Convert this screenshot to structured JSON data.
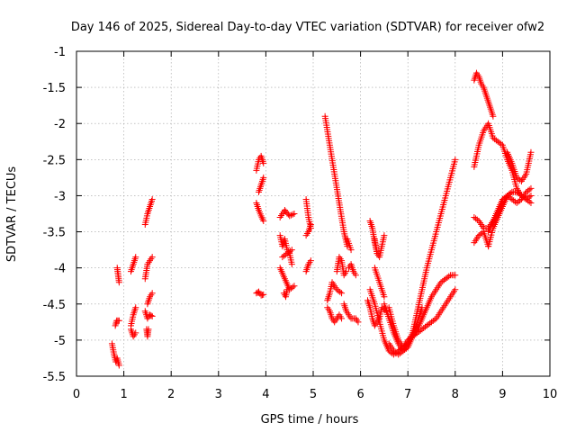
{
  "chart_data": {
    "type": "scatter",
    "title": "Day 146 of 2025, Sidereal Day-to-day VTEC variation (SDTVAR) for receiver ofw2",
    "xlabel": "GPS time / hours",
    "ylabel": "SDTVAR / TECUs",
    "xlim": [
      0,
      10
    ],
    "ylim": [
      -5.5,
      -1
    ],
    "x_ticks": [
      0,
      1,
      2,
      3,
      4,
      5,
      6,
      7,
      8,
      9,
      10
    ],
    "x_tick_labels": [
      "0",
      "1",
      "2",
      "3",
      "4",
      "5",
      "6",
      "7",
      "8",
      "9",
      "10"
    ],
    "y_ticks": [
      -1,
      -1.5,
      -2,
      -2.5,
      -3,
      -3.5,
      -4,
      -4.5,
      -5,
      -5.5
    ],
    "y_tick_labels": [
      "-1",
      "-1.5",
      "-2",
      "-2.5",
      "-3",
      "-3.5",
      "-4",
      "-4.5",
      "-5",
      "-5.5"
    ],
    "grid": true,
    "marker": "+",
    "marker_color": "#ff0000",
    "segments": [
      {
        "name": "t0.8",
        "x": [
          0.75,
          0.8,
          0.83,
          0.86,
          0.9
        ],
        "y": [
          -5.05,
          -5.22,
          -5.3,
          -5.25,
          -5.35
        ]
      },
      {
        "name": "t0.85",
        "x": [
          0.82,
          0.85,
          0.9
        ],
        "y": [
          -4.8,
          -4.73,
          -4.73
        ]
      },
      {
        "name": "t0.88",
        "x": [
          0.86,
          0.88,
          0.9
        ],
        "y": [
          -4.0,
          -4.1,
          -4.2
        ]
      },
      {
        "name": "t1.2a",
        "x": [
          1.15,
          1.2,
          1.25
        ],
        "y": [
          -4.8,
          -4.65,
          -4.55
        ]
      },
      {
        "name": "t1.2b",
        "x": [
          1.15,
          1.2,
          1.25
        ],
        "y": [
          -4.85,
          -4.95,
          -4.9
        ]
      },
      {
        "name": "t1.2c",
        "x": [
          1.15,
          1.2,
          1.25
        ],
        "y": [
          -4.05,
          -3.95,
          -3.85
        ]
      },
      {
        "name": "t1.5a",
        "x": [
          1.45,
          1.5,
          1.55,
          1.6
        ],
        "y": [
          -3.4,
          -3.25,
          -3.15,
          -3.05
        ]
      },
      {
        "name": "t1.5b",
        "x": [
          1.45,
          1.5,
          1.55,
          1.6
        ],
        "y": [
          -4.6,
          -4.7,
          -4.65,
          -4.67
        ]
      },
      {
        "name": "t1.5c",
        "x": [
          1.5,
          1.55,
          1.6
        ],
        "y": [
          -4.5,
          -4.4,
          -4.35
        ]
      },
      {
        "name": "t1.5d",
        "x": [
          1.45,
          1.5,
          1.55,
          1.6
        ],
        "y": [
          -4.15,
          -3.95,
          -3.9,
          -3.85
        ]
      },
      {
        "name": "t1.5e",
        "x": [
          1.48,
          1.5,
          1.52
        ],
        "y": [
          -4.85,
          -4.95,
          -4.85
        ]
      },
      {
        "name": "t3.9a",
        "x": [
          3.8,
          3.85,
          3.9,
          3.95
        ],
        "y": [
          -2.65,
          -2.5,
          -2.45,
          -2.55
        ]
      },
      {
        "name": "t3.9b",
        "x": [
          3.8,
          3.85,
          3.9,
          3.95
        ],
        "y": [
          -3.1,
          -3.2,
          -3.28,
          -3.35
        ]
      },
      {
        "name": "t3.9c",
        "x": [
          3.85,
          3.9,
          3.95
        ],
        "y": [
          -2.95,
          -2.85,
          -2.75
        ]
      },
      {
        "name": "t3.9d",
        "x": [
          3.8,
          3.85,
          3.9,
          3.95
        ],
        "y": [
          -4.35,
          -4.33,
          -4.38,
          -4.37
        ]
      },
      {
        "name": "t4.4a",
        "x": [
          4.3,
          4.4,
          4.5,
          4.6
        ],
        "y": [
          -3.3,
          -3.2,
          -3.28,
          -3.25
        ]
      },
      {
        "name": "t4.4b",
        "x": [
          4.3,
          4.35,
          4.4,
          4.45,
          4.5,
          4.55
        ],
        "y": [
          -3.55,
          -3.7,
          -3.6,
          -3.75,
          -3.8,
          -3.95
        ]
      },
      {
        "name": "t4.4c",
        "x": [
          4.35,
          4.45,
          4.55
        ],
        "y": [
          -3.85,
          -3.8,
          -3.75
        ]
      },
      {
        "name": "t4.4d",
        "x": [
          4.3,
          4.4,
          4.5,
          4.6
        ],
        "y": [
          -4.0,
          -4.15,
          -4.3,
          -4.25
        ]
      },
      {
        "name": "t4.4e",
        "x": [
          4.38,
          4.42,
          4.45
        ],
        "y": [
          -4.35,
          -4.4,
          -4.3
        ]
      },
      {
        "name": "t4.9a",
        "x": [
          4.85,
          4.9,
          4.95
        ],
        "y": [
          -3.05,
          -3.3,
          -3.45
        ]
      },
      {
        "name": "t4.9b",
        "x": [
          4.85,
          4.9,
          4.95
        ],
        "y": [
          -3.55,
          -3.5,
          -3.4
        ]
      },
      {
        "name": "t4.9c",
        "x": [
          4.85,
          4.9,
          4.95
        ],
        "y": [
          -4.05,
          -3.95,
          -3.9
        ]
      },
      {
        "name": "t5.3a",
        "x": [
          5.25,
          5.35,
          5.45,
          5.55,
          5.65,
          5.72
        ],
        "y": [
          -1.9,
          -2.3,
          -2.7,
          -3.1,
          -3.5,
          -3.7
        ]
      },
      {
        "name": "t5.3b",
        "x": [
          5.72,
          5.8
        ],
        "y": [
          -3.6,
          -3.75
        ]
      },
      {
        "name": "t5.4a",
        "x": [
          5.3,
          5.35,
          5.4,
          5.45,
          5.5,
          5.6
        ],
        "y": [
          -4.45,
          -4.35,
          -4.2,
          -4.25,
          -4.3,
          -4.35
        ]
      },
      {
        "name": "t5.4b",
        "x": [
          5.3,
          5.35,
          5.4,
          5.45,
          5.5,
          5.55,
          5.6
        ],
        "y": [
          -4.55,
          -4.6,
          -4.7,
          -4.75,
          -4.7,
          -4.65,
          -4.7
        ]
      },
      {
        "name": "t5.5a",
        "x": [
          5.5,
          5.55,
          5.6,
          5.65,
          5.7
        ],
        "y": [
          -4.05,
          -3.85,
          -3.9,
          -4.1,
          -4.05
        ]
      },
      {
        "name": "t5.5b",
        "x": [
          5.65,
          5.7,
          5.8,
          5.9,
          5.95
        ],
        "y": [
          -4.5,
          -4.6,
          -4.7,
          -4.7,
          -4.75
        ]
      },
      {
        "name": "t5.8",
        "x": [
          5.75,
          5.8,
          5.85,
          5.9
        ],
        "y": [
          -4.0,
          -3.95,
          -4.05,
          -4.1
        ]
      },
      {
        "name": "t6.3a",
        "x": [
          6.2,
          6.25,
          6.3,
          6.35
        ],
        "y": [
          -3.35,
          -3.45,
          -3.65,
          -3.8
        ]
      },
      {
        "name": "t6.3b",
        "x": [
          6.15,
          6.2,
          6.25,
          6.3,
          6.35,
          6.4,
          6.45,
          6.55
        ],
        "y": [
          -4.45,
          -4.55,
          -4.7,
          -4.8,
          -4.75,
          -4.7,
          -4.55,
          -4.6
        ]
      },
      {
        "name": "t6.3c",
        "x": [
          6.3,
          6.35,
          6.4,
          6.45,
          6.5
        ],
        "y": [
          -3.6,
          -3.8,
          -3.85,
          -3.7,
          -3.55
        ]
      },
      {
        "name": "t6.5",
        "x": [
          6.2,
          6.3,
          6.4,
          6.5,
          6.6,
          6.7,
          6.8,
          6.9,
          7.0,
          7.1,
          7.2,
          7.3,
          7.4,
          7.5,
          7.6,
          7.7,
          7.8,
          7.9,
          8.0
        ],
        "y": [
          -4.3,
          -4.5,
          -4.75,
          -5.0,
          -5.15,
          -5.2,
          -5.15,
          -5.1,
          -5.0,
          -4.95,
          -4.85,
          -4.7,
          -4.55,
          -4.4,
          -4.3,
          -4.2,
          -4.15,
          -4.1,
          -4.1
        ]
      },
      {
        "name": "t6.7",
        "x": [
          6.6,
          6.7,
          6.8,
          6.9,
          7.0,
          7.1,
          7.2,
          7.3,
          7.4,
          7.5,
          7.6,
          7.7,
          7.8,
          7.9,
          8.0
        ],
        "y": [
          -5.05,
          -5.15,
          -5.2,
          -5.15,
          -5.05,
          -4.95,
          -4.9,
          -4.85,
          -4.8,
          -4.75,
          -4.7,
          -4.6,
          -4.5,
          -4.4,
          -4.3
        ]
      },
      {
        "name": "t6.9",
        "x": [
          6.6,
          6.7,
          6.8,
          6.9,
          7.0,
          7.1,
          7.2,
          7.3,
          7.4,
          7.5,
          7.6,
          7.7,
          7.8,
          7.9,
          8.0
        ],
        "y": [
          -4.55,
          -4.8,
          -5.0,
          -5.1,
          -5.05,
          -4.9,
          -4.6,
          -4.3,
          -4.0,
          -3.75,
          -3.5,
          -3.25,
          -3.0,
          -2.75,
          -2.5
        ]
      },
      {
        "name": "t7.1",
        "x": [
          6.5,
          6.6,
          6.7,
          6.8,
          6.9,
          7.0,
          7.1,
          7.2,
          7.3
        ],
        "y": [
          -4.5,
          -4.7,
          -4.9,
          -5.05,
          -5.15,
          -5.1,
          -4.95,
          -4.75,
          -4.55
        ]
      },
      {
        "name": "t6.6",
        "x": [
          6.3,
          6.4,
          6.5
        ],
        "y": [
          -4.0,
          -4.2,
          -4.4
        ]
      },
      {
        "name": "t8.5a",
        "x": [
          8.4,
          8.45,
          8.5,
          8.55,
          8.6,
          8.65,
          8.7,
          8.75,
          8.8
        ],
        "y": [
          -1.4,
          -1.3,
          -1.35,
          -1.45,
          -1.5,
          -1.6,
          -1.7,
          -1.8,
          -1.9
        ]
      },
      {
        "name": "t8.5b",
        "x": [
          8.4,
          8.5,
          8.6,
          8.7,
          8.8,
          8.9,
          9.0,
          9.1,
          9.2
        ],
        "y": [
          -3.3,
          -3.35,
          -3.45,
          -3.45,
          -3.35,
          -3.25,
          -3.1,
          -3.0,
          -2.95
        ]
      },
      {
        "name": "t8.5c",
        "x": [
          8.4,
          8.5,
          8.6,
          8.7
        ],
        "y": [
          -3.65,
          -3.55,
          -3.5,
          -3.7
        ]
      },
      {
        "name": "t8.5d",
        "x": [
          8.4,
          8.5,
          8.6,
          8.7,
          8.8,
          8.9,
          9.0,
          9.1,
          9.2,
          9.3,
          9.4,
          9.5,
          9.6
        ],
        "y": [
          -2.6,
          -2.3,
          -2.1,
          -2.0,
          -2.2,
          -2.25,
          -2.3,
          -2.5,
          -2.65,
          -2.9,
          -3.0,
          -3.05,
          -3.0
        ]
      },
      {
        "name": "t8.8a",
        "x": [
          8.7,
          8.8,
          8.9,
          9.0,
          9.1,
          9.2,
          9.3,
          9.4,
          9.5,
          9.6
        ],
        "y": [
          -3.7,
          -3.45,
          -3.3,
          -3.15,
          -3.0,
          -2.95,
          -2.95,
          -3.0,
          -3.05,
          -3.1
        ]
      },
      {
        "name": "t8.8b",
        "x": [
          8.7,
          8.8,
          8.9,
          9.0,
          9.1,
          9.2,
          9.3,
          9.4,
          9.5,
          9.6
        ],
        "y": [
          -3.5,
          -3.35,
          -3.2,
          -3.05,
          -3.0,
          -3.05,
          -3.1,
          -3.05,
          -2.95,
          -2.9
        ]
      },
      {
        "name": "t9.2",
        "x": [
          9.1,
          9.2,
          9.3,
          9.4,
          9.5,
          9.6
        ],
        "y": [
          -2.4,
          -2.55,
          -2.75,
          -2.8,
          -2.7,
          -2.4
        ]
      }
    ]
  }
}
